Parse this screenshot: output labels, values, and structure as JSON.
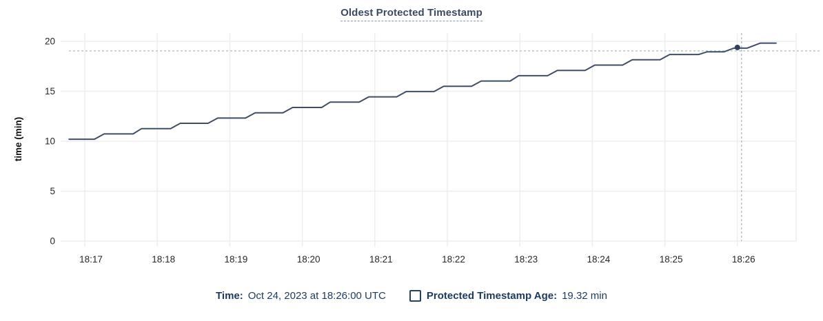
{
  "title": "Oldest Protected Timestamp",
  "colors": {
    "line": "#3e4d68",
    "dot": "#31405c",
    "crosshair": "#a9bac7",
    "grid": "#ededed",
    "tick_text": "#262626",
    "axis_label": "#111111",
    "navy": "#1c3a5e",
    "title": "#3b4a63"
  },
  "legend": {
    "time": {
      "label": "Time:",
      "value": "Oct 24, 2023 at 18:26:00 UTC"
    },
    "age": {
      "label": "Protected Timestamp Age:",
      "value": "19.32 min"
    }
  },
  "chart_data": {
    "type": "line",
    "title": "Oldest Protected Timestamp",
    "xlabel": "",
    "ylabel": "time (min)",
    "ylim": [
      0,
      20
    ],
    "y_ticks": [
      0,
      5,
      10,
      15,
      20
    ],
    "x_ticks": [
      "18:17",
      "18:18",
      "18:19",
      "18:20",
      "18:21",
      "18:22",
      "18:23",
      "18:24",
      "18:25",
      "18:26"
    ],
    "grid": true,
    "legend_position": "bottom",
    "crosshair": {
      "time": "18:26:00",
      "value": 19.32
    },
    "series": [
      {
        "name": "Protected Timestamp Age",
        "unit": "min",
        "points": [
          [
            "18:16:47",
            10.2
          ],
          [
            "18:17:08",
            10.2
          ],
          [
            "18:17:16",
            10.73
          ],
          [
            "18:17:40",
            10.73
          ],
          [
            "18:17:47",
            11.26
          ],
          [
            "18:18:11",
            11.26
          ],
          [
            "18:18:19",
            11.79
          ],
          [
            "18:18:42",
            11.79
          ],
          [
            "18:18:50",
            12.32
          ],
          [
            "18:19:13",
            12.32
          ],
          [
            "18:19:21",
            12.85
          ],
          [
            "18:19:44",
            12.85
          ],
          [
            "18:19:52",
            13.38
          ],
          [
            "18:20:16",
            13.38
          ],
          [
            "18:20:23",
            13.91
          ],
          [
            "18:20:47",
            13.91
          ],
          [
            "18:20:55",
            14.44
          ],
          [
            "18:21:18",
            14.44
          ],
          [
            "18:21:26",
            14.97
          ],
          [
            "18:21:49",
            14.97
          ],
          [
            "18:21:57",
            15.5
          ],
          [
            "18:22:20",
            15.5
          ],
          [
            "18:22:28",
            16.03
          ],
          [
            "18:22:52",
            16.03
          ],
          [
            "18:22:59",
            16.56
          ],
          [
            "18:23:23",
            16.56
          ],
          [
            "18:23:31",
            17.09
          ],
          [
            "18:23:54",
            17.09
          ],
          [
            "18:24:02",
            17.62
          ],
          [
            "18:24:25",
            17.62
          ],
          [
            "18:24:33",
            18.15
          ],
          [
            "18:24:56",
            18.15
          ],
          [
            "18:25:04",
            18.68
          ],
          [
            "18:25:28",
            18.68
          ],
          [
            "18:25:35",
            18.95
          ],
          [
            "18:25:49",
            18.95
          ],
          [
            "18:25:57",
            19.32
          ],
          [
            "18:26:08",
            19.32
          ],
          [
            "18:26:19",
            19.82
          ],
          [
            "18:26:32",
            19.82
          ]
        ]
      }
    ]
  }
}
